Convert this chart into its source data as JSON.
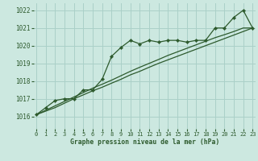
{
  "title": "Graphe pression niveau de la mer (hPa)",
  "bg_color": "#cce8e0",
  "grid_color": "#aad0c8",
  "line_color": "#2d5a2d",
  "x_ticks": [
    0,
    1,
    2,
    3,
    4,
    5,
    6,
    7,
    8,
    9,
    10,
    11,
    12,
    13,
    14,
    15,
    16,
    17,
    18,
    19,
    20,
    21,
    22,
    23
  ],
  "y_ticks": [
    1016,
    1017,
    1018,
    1019,
    1020,
    1021,
    1022
  ],
  "ylim": [
    1015.3,
    1022.4
  ],
  "xlim": [
    -0.3,
    23.3
  ],
  "main_data": [
    1016.1,
    1016.5,
    1016.9,
    1017.0,
    1017.0,
    1017.5,
    1017.5,
    1018.1,
    1019.4,
    1019.9,
    1020.3,
    1020.1,
    1020.3,
    1020.2,
    1020.3,
    1020.3,
    1020.2,
    1020.3,
    1020.3,
    1021.0,
    1021.0,
    1021.6,
    1022.0,
    1021.0
  ],
  "linear_line": [
    1016.1,
    1016.35,
    1016.6,
    1016.85,
    1017.1,
    1017.35,
    1017.6,
    1017.82,
    1018.05,
    1018.3,
    1018.55,
    1018.78,
    1019.0,
    1019.22,
    1019.45,
    1019.65,
    1019.85,
    1020.05,
    1020.25,
    1020.45,
    1020.62,
    1020.8,
    1021.0,
    1021.0
  ],
  "linear_line2": [
    1016.1,
    1016.3,
    1016.5,
    1016.75,
    1017.0,
    1017.22,
    1017.45,
    1017.65,
    1017.88,
    1018.1,
    1018.35,
    1018.55,
    1018.78,
    1019.0,
    1019.2,
    1019.4,
    1019.6,
    1019.8,
    1020.0,
    1020.2,
    1020.4,
    1020.6,
    1020.8,
    1021.0
  ]
}
